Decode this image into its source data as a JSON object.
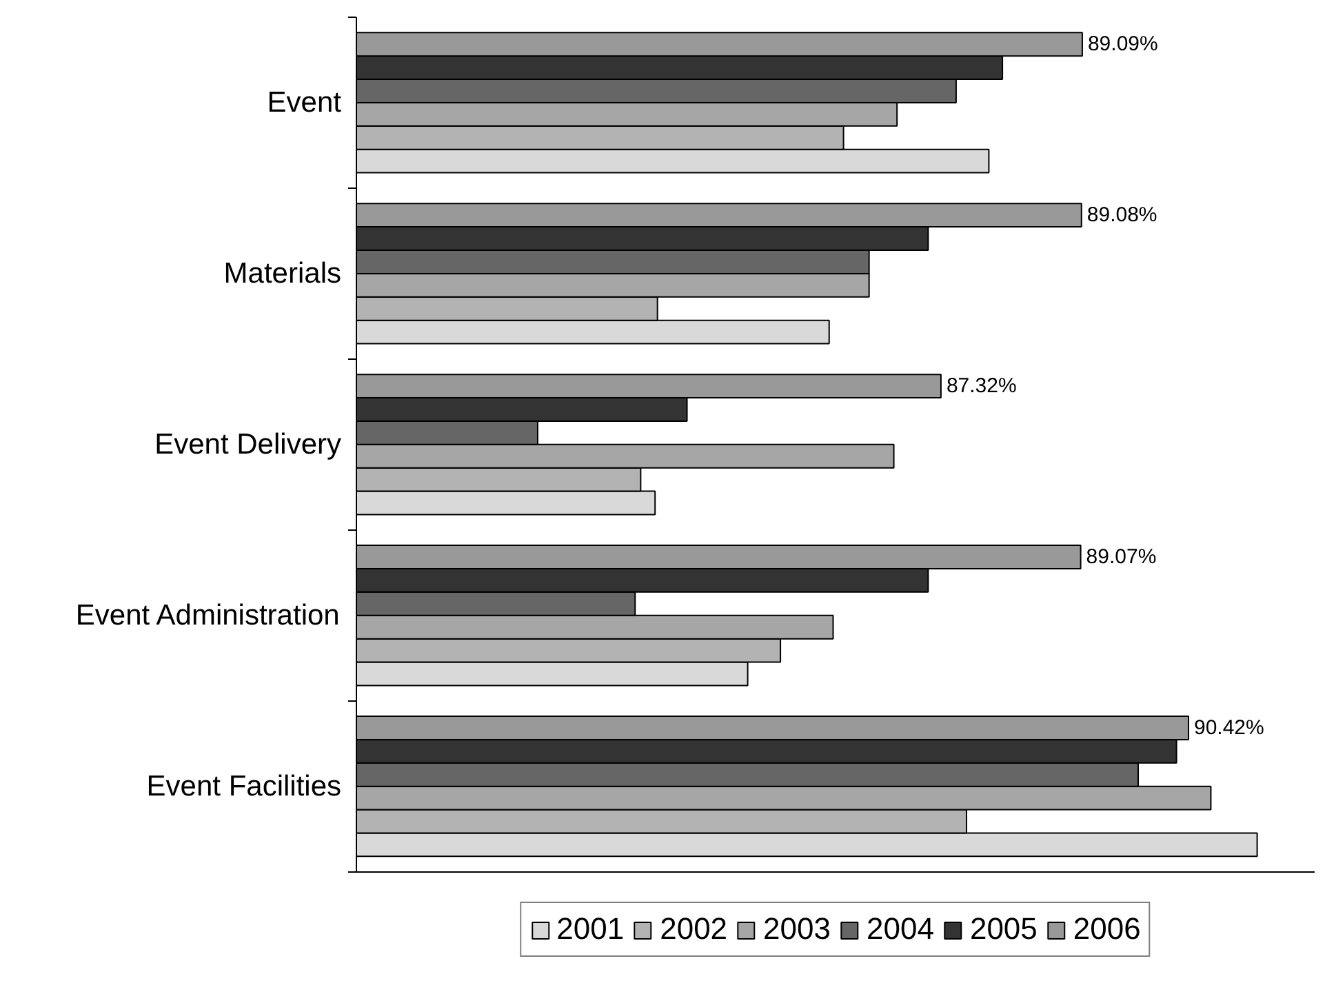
{
  "chart_data": {
    "type": "bar",
    "orientation": "horizontal",
    "categories": [
      "Event",
      "Materials",
      "Event Delivery",
      "Event Administration",
      "Event Facilities"
    ],
    "xlim": [
      80,
      92
    ],
    "tick_labels": "y",
    "grid": false,
    "legend": "bottom",
    "series": [
      {
        "name": "2001",
        "color": "#d9d9d9",
        "values": [
          87.92,
          85.92,
          83.74,
          84.9,
          91.28
        ]
      },
      {
        "name": "2002",
        "color": "#b3b3b3",
        "values": [
          86.1,
          83.77,
          83.56,
          85.31,
          87.64
        ]
      },
      {
        "name": "2003",
        "color": "#a6a6a6",
        "values": [
          86.77,
          86.42,
          86.73,
          85.97,
          90.7
        ]
      },
      {
        "name": "2004",
        "color": "#666666",
        "values": [
          87.51,
          86.42,
          82.27,
          83.49,
          89.79
        ]
      },
      {
        "name": "2005",
        "color": "#333333",
        "values": [
          88.09,
          87.16,
          84.14,
          87.16,
          90.27
        ]
      },
      {
        "name": "2006",
        "color": "#999999",
        "values": [
          89.09,
          89.08,
          87.32,
          89.07,
          90.42
        ],
        "value_labels": [
          "89.09%",
          "89.08%",
          "87.32%",
          "89.07%",
          "90.42%"
        ]
      }
    ]
  }
}
